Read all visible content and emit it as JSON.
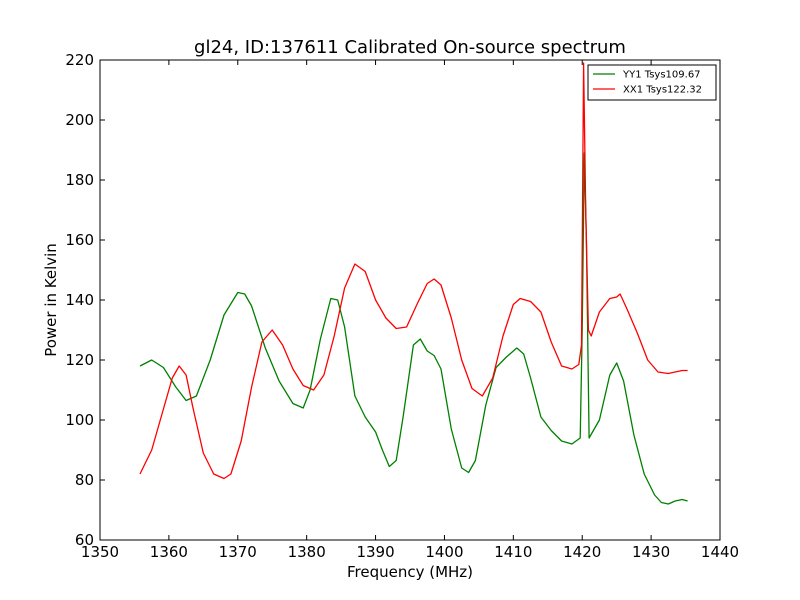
{
  "chart_data": {
    "type": "line",
    "title": "gl24, ID:137611 Calibrated On-source spectrum",
    "xlabel": "Frequency (MHz)",
    "ylabel": "Power in Kelvin",
    "xlim": [
      1350,
      1440
    ],
    "ylim": [
      60,
      220
    ],
    "xticks": [
      1350,
      1360,
      1370,
      1380,
      1390,
      1400,
      1410,
      1420,
      1430,
      1440
    ],
    "yticks": [
      60,
      80,
      100,
      120,
      140,
      160,
      180,
      200,
      220
    ],
    "grid": false,
    "legend_position": "top-right",
    "series": [
      {
        "name": "YY1 Tsys109.67",
        "color": "#008000",
        "x": [
          1355.8,
          1357.5,
          1359.2,
          1361.0,
          1362.5,
          1364.0,
          1366.0,
          1368.0,
          1370.0,
          1371.0,
          1372.0,
          1374.0,
          1376.0,
          1378.0,
          1379.5,
          1380.5,
          1382.0,
          1383.5,
          1384.5,
          1385.5,
          1387.0,
          1388.5,
          1390.0,
          1391.0,
          1392.0,
          1393.0,
          1394.0,
          1395.5,
          1396.5,
          1397.5,
          1398.5,
          1399.5,
          1401.0,
          1402.5,
          1403.5,
          1404.5,
          1406.0,
          1407.5,
          1409.0,
          1410.5,
          1411.5,
          1412.5,
          1414.0,
          1415.5,
          1417.0,
          1418.5,
          1419.7,
          1420.0,
          1420.3,
          1420.6,
          1421.0,
          1422.5,
          1424.0,
          1425.0,
          1426.0,
          1427.5,
          1429.0,
          1430.5,
          1431.5,
          1432.5,
          1433.5,
          1434.5,
          1435.3
        ],
        "values": [
          118,
          120,
          117.5,
          111,
          106.5,
          108,
          120,
          135,
          142.5,
          142,
          138,
          124,
          113,
          105.5,
          104,
          110,
          127,
          140.5,
          140,
          131,
          108,
          101,
          96,
          90,
          84.5,
          86.5,
          101,
          125,
          127,
          123,
          121.5,
          117,
          97,
          84,
          82.5,
          86.5,
          105,
          117.5,
          121,
          124,
          122,
          114,
          101,
          96.5,
          93,
          92,
          94,
          130,
          189,
          160,
          94,
          100,
          115,
          119,
          113,
          95,
          82,
          75,
          72.5,
          72,
          73,
          73.5,
          73
        ]
      },
      {
        "name": "XX1 Tsys122.32",
        "color": "#ff0000",
        "x": [
          1355.8,
          1357.5,
          1359.0,
          1360.5,
          1361.5,
          1362.5,
          1363.5,
          1365.0,
          1366.5,
          1368.0,
          1369.0,
          1370.5,
          1372.0,
          1373.5,
          1375.0,
          1376.5,
          1378.0,
          1379.5,
          1381.0,
          1382.5,
          1384.0,
          1385.5,
          1387.0,
          1388.5,
          1390.0,
          1391.5,
          1393.0,
          1394.5,
          1396.0,
          1397.5,
          1398.5,
          1399.5,
          1401.0,
          1402.5,
          1404.0,
          1405.5,
          1407.0,
          1408.5,
          1410.0,
          1411.0,
          1412.5,
          1414.0,
          1415.5,
          1417.0,
          1418.5,
          1419.5,
          1419.9,
          1420.2,
          1420.5,
          1420.9,
          1421.3,
          1422.5,
          1424.0,
          1425.0,
          1425.5,
          1426.5,
          1428.0,
          1429.5,
          1431.0,
          1432.5,
          1433.5,
          1434.5,
          1435.3
        ],
        "values": [
          82,
          90,
          102,
          114,
          118,
          115,
          104,
          89,
          82,
          80.5,
          82,
          93,
          111,
          126,
          130,
          125,
          117,
          111.5,
          110,
          115,
          128,
          144,
          152,
          149.5,
          140,
          134,
          130.5,
          131,
          138.5,
          145.5,
          147,
          145,
          134,
          120,
          110.5,
          108,
          114,
          128,
          138.5,
          140.5,
          139.5,
          136,
          126,
          118,
          117,
          118.5,
          125,
          219,
          170,
          130,
          128,
          136,
          140.5,
          141,
          142,
          137,
          129,
          120,
          116,
          115.5,
          116,
          116.5,
          116.5
        ]
      }
    ]
  }
}
